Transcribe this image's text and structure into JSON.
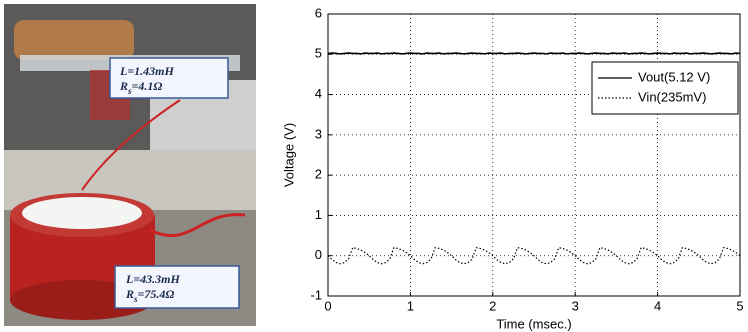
{
  "annotations": [
    {
      "lines": [
        [
          "L=1.43mH"
        ],
        [
          "R",
          "s",
          "=4.1Ω"
        ]
      ]
    },
    {
      "lines": [
        [
          "L=43.3mH"
        ],
        [
          "R",
          "s",
          "=75.4Ω"
        ]
      ]
    }
  ],
  "chart_data": {
    "type": "line",
    "xlabel": "Time (msec.)",
    "ylabel": "Voltage (V)",
    "xlim": [
      0,
      5
    ],
    "ylim": [
      -1,
      6
    ],
    "xticks": [
      0,
      1,
      2,
      3,
      4,
      5
    ],
    "yticks": [
      -1,
      0,
      1,
      2,
      3,
      4,
      5,
      6
    ],
    "grid": true,
    "legend": "upper right",
    "x": [
      0,
      0.05,
      0.1,
      0.15,
      0.2,
      0.25,
      0.3,
      0.35,
      0.4,
      0.45,
      0.5,
      0.55,
      0.6,
      0.65,
      0.7,
      0.75,
      0.8,
      0.85,
      0.9,
      0.95,
      1,
      1.05,
      1.1,
      1.15,
      1.2,
      1.25,
      1.3,
      1.35,
      1.4,
      1.45,
      1.5,
      1.55,
      1.6,
      1.65,
      1.7,
      1.75,
      1.8,
      1.85,
      1.9,
      1.95,
      2,
      2.05,
      2.1,
      2.15,
      2.2,
      2.25,
      2.3,
      2.35,
      2.4,
      2.45,
      2.5,
      2.55,
      2.6,
      2.65,
      2.7,
      2.75,
      2.8,
      2.85,
      2.9,
      2.95,
      3,
      3.05,
      3.1,
      3.15,
      3.2,
      3.25,
      3.3,
      3.35,
      3.4,
      3.45,
      3.5,
      3.55,
      3.6,
      3.65,
      3.7,
      3.75,
      3.8,
      3.85,
      3.9,
      3.95,
      4,
      4.05,
      4.1,
      4.15,
      4.2,
      4.25,
      4.3,
      4.35,
      4.4,
      4.45,
      4.5,
      4.55,
      4.6,
      4.65,
      4.7,
      4.75,
      4.8,
      4.85,
      4.9,
      4.95,
      5
    ],
    "series": [
      {
        "name": "Vout(5.12 V)",
        "color": "#000000",
        "dash": "solid",
        "values": [
          5.02,
          5.03,
          5.02,
          5.01,
          5.02,
          5.03,
          5.02,
          5.02,
          5.01,
          5.03,
          5.02,
          5.02,
          5.03,
          5.01,
          5.02,
          5.02,
          5.03,
          5.02,
          5.01,
          5.02,
          5.03,
          5.02,
          5.02,
          5.01,
          5.03,
          5.02,
          5.02,
          5.03,
          5.01,
          5.02,
          5.02,
          5.03,
          5.02,
          5.01,
          5.02,
          5.03,
          5.02,
          5.02,
          5.01,
          5.03,
          5.02,
          5.02,
          5.03,
          5.01,
          5.02,
          5.02,
          5.03,
          5.02,
          5.01,
          5.02,
          5.03,
          5.02,
          5.02,
          5.01,
          5.03,
          5.02,
          5.02,
          5.03,
          5.01,
          5.02,
          5.02,
          5.03,
          5.02,
          5.01,
          5.02,
          5.03,
          5.02,
          5.02,
          5.01,
          5.03,
          5.02,
          5.02,
          5.03,
          5.01,
          5.02,
          5.02,
          5.03,
          5.02,
          5.01,
          5.02,
          5.03,
          5.02,
          5.02,
          5.01,
          5.03,
          5.02,
          5.02,
          5.03,
          5.01,
          5.02,
          5.02,
          5.03,
          5.02,
          5.01,
          5.02,
          5.03,
          5.02,
          5.02,
          5.01,
          5.03,
          5.02
        ]
      },
      {
        "name": "Vin(235mV)",
        "color": "#000000",
        "dash": "dotted",
        "values": [
          0.0,
          -0.1,
          -0.17,
          -0.2,
          -0.17,
          -0.08,
          0.2,
          0.18,
          0.14,
          0.08,
          0.0,
          -0.1,
          -0.17,
          -0.2,
          -0.17,
          -0.08,
          0.2,
          0.18,
          0.14,
          0.08,
          0.0,
          -0.1,
          -0.17,
          -0.2,
          -0.17,
          -0.08,
          0.2,
          0.18,
          0.14,
          0.08,
          0.0,
          -0.1,
          -0.17,
          -0.2,
          -0.17,
          -0.08,
          0.2,
          0.18,
          0.14,
          0.08,
          0.0,
          -0.1,
          -0.17,
          -0.2,
          -0.17,
          -0.08,
          0.2,
          0.18,
          0.14,
          0.08,
          0.0,
          -0.1,
          -0.17,
          -0.2,
          -0.17,
          -0.08,
          0.2,
          0.18,
          0.14,
          0.08,
          0.0,
          -0.1,
          -0.17,
          -0.2,
          -0.17,
          -0.08,
          0.2,
          0.18,
          0.14,
          0.08,
          0.0,
          -0.1,
          -0.17,
          -0.2,
          -0.17,
          -0.08,
          0.2,
          0.18,
          0.14,
          0.08,
          0.0,
          -0.1,
          -0.17,
          -0.2,
          -0.17,
          -0.08,
          0.2,
          0.18,
          0.14,
          0.08,
          0.0,
          -0.1,
          -0.17,
          -0.2,
          -0.17,
          -0.08,
          0.2,
          0.18,
          0.14,
          0.08,
          0.0
        ]
      }
    ]
  }
}
